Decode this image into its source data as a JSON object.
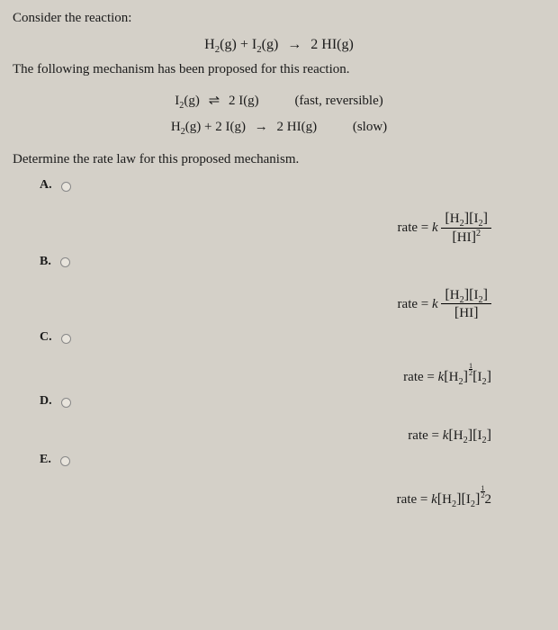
{
  "prompt1": "Consider the reaction:",
  "overall_reaction": {
    "lhs_1": "H",
    "lhs_1_sub": "2",
    "lhs_1_state": "(g)",
    "plus1": " +  ",
    "lhs_2": "I",
    "lhs_2_sub": "2",
    "lhs_2_state": "(g)",
    "arrow": "→",
    "rhs_coef": "2 ",
    "rhs": "HI",
    "rhs_state": "(g)"
  },
  "prompt2": "The following mechanism has been proposed for this reaction.",
  "mechanism": {
    "step1": {
      "lhs": "I",
      "lhs_sub": "2",
      "lhs_state": "(g)",
      "arrow": "⇌",
      "rhs_coef": "2 ",
      "rhs": "I",
      "rhs_state": "(g)",
      "annotation": "(fast, reversible)"
    },
    "step2": {
      "lhs_1": "H",
      "lhs_1_sub": "2",
      "lhs_1_state": "(g)",
      "plus": " +  ",
      "lhs_2_coef": "2 ",
      "lhs_2": "I",
      "lhs_2_state": "(g)",
      "arrow": "→",
      "rhs_coef": "2 ",
      "rhs": "HI",
      "rhs_state": "(g)",
      "annotation": "(slow)"
    }
  },
  "prompt3": "Determine the rate law for this proposed mechanism.",
  "options": {
    "A": {
      "label": "A."
    },
    "B": {
      "label": "B."
    },
    "C": {
      "label": "C."
    },
    "D": {
      "label": "D."
    },
    "E": {
      "label": "E."
    }
  },
  "rate_prefix": "rate = ",
  "k": "k",
  "species": {
    "H2": "H",
    "H2_sub": "2",
    "I2": "I",
    "I2_sub": "2",
    "HI": "HI"
  },
  "exp2": "2",
  "half_num": "1",
  "half_den": "2",
  "trailing2": "2",
  "colors": {
    "background": "#d4d0c8",
    "text": "#1a1a1a",
    "radio_border": "#888"
  },
  "fontsize_body": 15
}
